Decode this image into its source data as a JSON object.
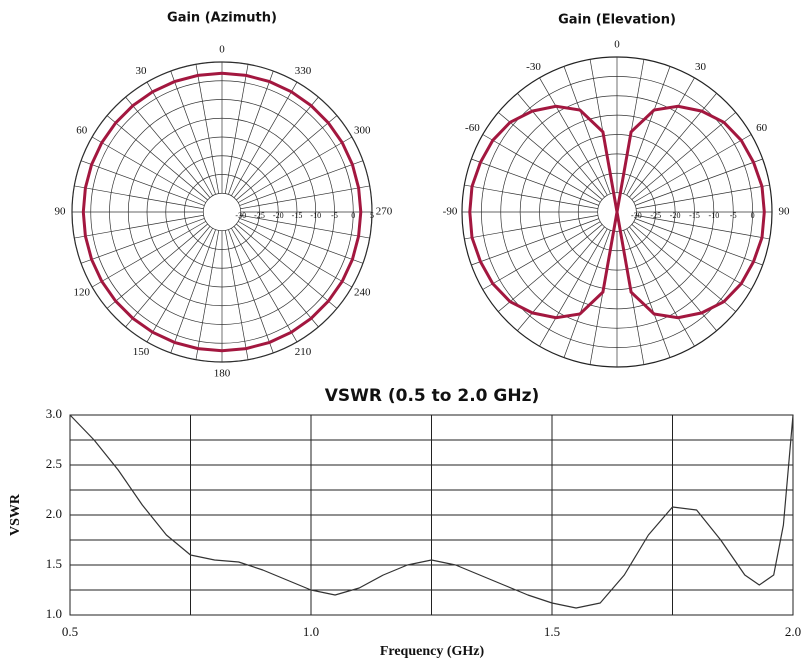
{
  "chart_data": [
    {
      "type": "polar",
      "title": "Gain (Azimuth)",
      "theta_direction": "counterclockwise",
      "rlim": [
        -35,
        5
      ],
      "rticks": [
        -30,
        -25,
        -20,
        -15,
        -10,
        -5,
        0,
        5
      ],
      "thetaticks": [
        0,
        30,
        60,
        90,
        120,
        150,
        180,
        210,
        240,
        270,
        300,
        330
      ],
      "series": [
        {
          "color": "#a3173f",
          "theta": [
            0,
            10,
            20,
            30,
            40,
            50,
            60,
            70,
            80,
            90,
            100,
            110,
            120,
            130,
            140,
            150,
            160,
            170,
            180,
            190,
            200,
            210,
            220,
            230,
            240,
            250,
            260,
            270,
            280,
            290,
            300,
            310,
            320,
            330,
            340,
            350,
            360
          ],
          "r": [
            2,
            2,
            2,
            2,
            2,
            2,
            2,
            2,
            2,
            2,
            2,
            2,
            2,
            2,
            2,
            2,
            2,
            2,
            2,
            2,
            2,
            2,
            2,
            2,
            2,
            2,
            2,
            2,
            2,
            2,
            2,
            2,
            2,
            2,
            2,
            2,
            2
          ]
        }
      ]
    },
    {
      "type": "polar",
      "title": "Gain (Elevation)",
      "theta_direction": "clockwise",
      "rlim": [
        -35,
        5
      ],
      "rticks": [
        -30,
        -25,
        -20,
        -15,
        -10,
        -5,
        0
      ],
      "thetaticks": [
        -90,
        -60,
        -30,
        0,
        30,
        60,
        90
      ],
      "series": [
        {
          "color": "#a3173f",
          "theta": [
            0,
            10,
            20,
            30,
            40,
            50,
            60,
            70,
            80,
            90,
            100,
            110,
            120,
            130,
            140,
            150,
            160,
            170,
            180,
            190,
            200,
            210,
            220,
            230,
            240,
            250,
            260,
            270,
            280,
            290,
            300,
            310,
            320,
            330,
            340,
            350,
            360
          ],
          "r": [
            -35,
            -14,
            -7,
            -3.5,
            -1,
            1,
            2,
            2.5,
            3,
            3,
            3,
            2.5,
            2,
            1,
            -1,
            -3.5,
            -7,
            -14,
            -35,
            -14,
            -7,
            -3.5,
            -1,
            1,
            2,
            2.5,
            3,
            3,
            3,
            2.5,
            2,
            1,
            -1,
            -3.5,
            -7,
            -14,
            -35
          ]
        }
      ]
    },
    {
      "type": "line",
      "title": "VSWR (0.5 to 2.0 GHz)",
      "xlabel": "Frequency (GHz)",
      "ylabel": "VSWR",
      "xlim": [
        0.5,
        2.0
      ],
      "ylim": [
        1.0,
        3.0
      ],
      "xticks": [
        0.5,
        {
          "value": 1.0,
          "label": "1.0"
        },
        1.5,
        {
          "value": 2.0,
          "label": "2.0"
        }
      ],
      "yticks": [
        {
          "value": 1.0,
          "label": "1.0"
        },
        1.5,
        {
          "value": 2.0,
          "label": "2.0"
        },
        2.5,
        {
          "value": 3.0,
          "label": "3.0"
        }
      ],
      "x_minor_ticks": [
        0.75,
        1.25,
        1.75
      ],
      "y_minor_ticks": [
        1.25,
        1.75,
        2.25,
        2.75
      ],
      "grid": true,
      "series": [
        {
          "color": "#333333",
          "x": [
            0.5,
            0.55,
            0.6,
            0.65,
            0.7,
            0.75,
            0.8,
            0.85,
            0.9,
            0.95,
            1.0,
            1.05,
            1.1,
            1.15,
            1.2,
            1.25,
            1.3,
            1.35,
            1.4,
            1.45,
            1.5,
            1.55,
            1.6,
            1.65,
            1.7,
            1.75,
            1.8,
            1.85,
            1.9,
            1.93,
            1.96,
            1.98,
            2.0
          ],
          "values": [
            3.0,
            2.75,
            2.45,
            2.1,
            1.8,
            1.6,
            1.55,
            1.53,
            1.45,
            1.35,
            1.25,
            1.2,
            1.27,
            1.4,
            1.5,
            1.55,
            1.5,
            1.4,
            1.3,
            1.2,
            1.12,
            1.07,
            1.12,
            1.4,
            1.8,
            2.08,
            2.05,
            1.75,
            1.4,
            1.3,
            1.4,
            1.9,
            3.0
          ]
        }
      ]
    }
  ]
}
